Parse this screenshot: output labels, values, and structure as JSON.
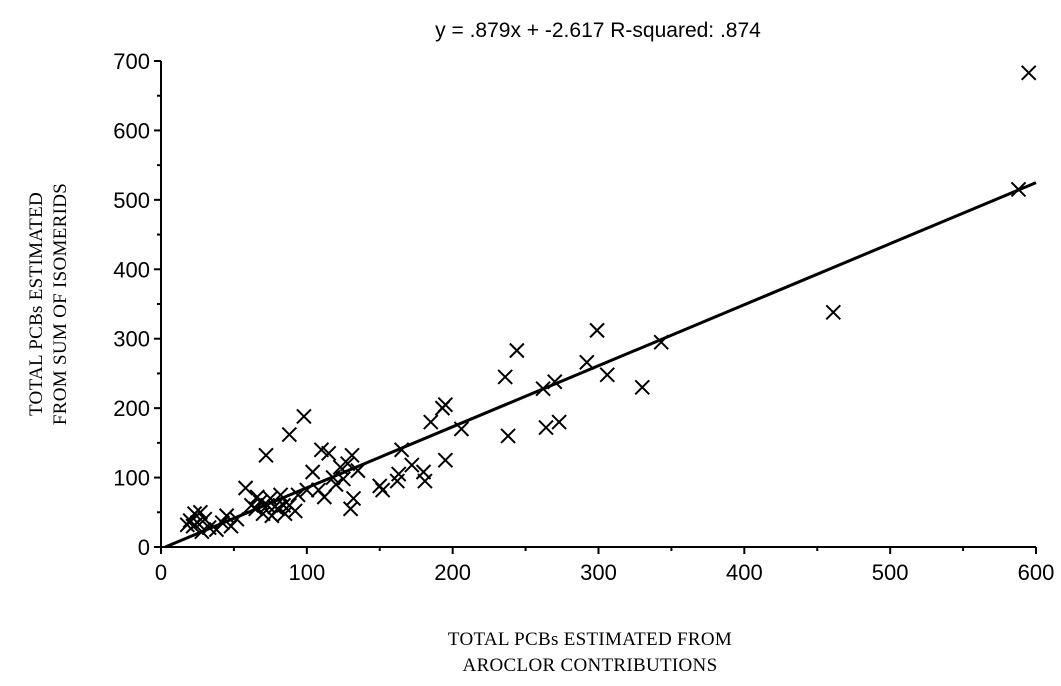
{
  "chart_data": {
    "type": "scatter",
    "title": "y = .879x + -2.617   R-squared: .874",
    "xlabel": [
      "TOTAL PCBs ESTIMATED FROM",
      "AROCLOR CONTRIBUTIONS"
    ],
    "ylabel": [
      "TOTAL PCBs  ESTIMATED",
      "FROM SUM OF ISOMERIDS"
    ],
    "xlim": [
      0,
      600
    ],
    "ylim": [
      0,
      700
    ],
    "x_ticks": [
      0,
      100,
      200,
      300,
      400,
      500,
      600
    ],
    "y_ticks": [
      0,
      100,
      200,
      300,
      400,
      500,
      600,
      700
    ],
    "marker": "x",
    "grid": false,
    "fit_line": {
      "slope": 0.879,
      "intercept": -2.617
    },
    "points": [
      [
        18,
        32
      ],
      [
        20,
        38
      ],
      [
        22,
        30
      ],
      [
        23,
        48
      ],
      [
        25,
        35
      ],
      [
        27,
        50
      ],
      [
        28,
        22
      ],
      [
        30,
        40
      ],
      [
        33,
        28
      ],
      [
        38,
        25
      ],
      [
        42,
        35
      ],
      [
        45,
        45
      ],
      [
        48,
        30
      ],
      [
        52,
        40
      ],
      [
        58,
        85
      ],
      [
        62,
        60
      ],
      [
        65,
        55
      ],
      [
        66,
        72
      ],
      [
        68,
        65
      ],
      [
        70,
        48
      ],
      [
        72,
        132
      ],
      [
        73,
        60
      ],
      [
        75,
        70
      ],
      [
        76,
        45
      ],
      [
        78,
        58
      ],
      [
        80,
        55
      ],
      [
        82,
        75
      ],
      [
        84,
        60
      ],
      [
        85,
        48
      ],
      [
        88,
        162
      ],
      [
        88,
        60
      ],
      [
        92,
        52
      ],
      [
        94,
        75
      ],
      [
        98,
        188
      ],
      [
        100,
        82
      ],
      [
        104,
        108
      ],
      [
        108,
        82
      ],
      [
        110,
        140
      ],
      [
        112,
        72
      ],
      [
        115,
        135
      ],
      [
        118,
        100
      ],
      [
        120,
        90
      ],
      [
        123,
        115
      ],
      [
        125,
        98
      ],
      [
        128,
        120
      ],
      [
        130,
        55
      ],
      [
        131,
        132
      ],
      [
        132,
        70
      ],
      [
        135,
        110
      ],
      [
        150,
        88
      ],
      [
        152,
        82
      ],
      [
        162,
        95
      ],
      [
        163,
        105
      ],
      [
        165,
        140
      ],
      [
        172,
        118
      ],
      [
        180,
        108
      ],
      [
        181,
        95
      ],
      [
        185,
        180
      ],
      [
        193,
        200
      ],
      [
        195,
        205
      ],
      [
        195,
        125
      ],
      [
        206,
        170
      ],
      [
        236,
        245
      ],
      [
        238,
        160
      ],
      [
        244,
        283
      ],
      [
        262,
        228
      ],
      [
        264,
        172
      ],
      [
        270,
        238
      ],
      [
        273,
        180
      ],
      [
        292,
        266
      ],
      [
        299,
        312
      ],
      [
        306,
        248
      ],
      [
        330,
        230
      ],
      [
        343,
        295
      ],
      [
        461,
        338
      ],
      [
        588,
        515
      ],
      [
        595,
        683
      ]
    ]
  }
}
